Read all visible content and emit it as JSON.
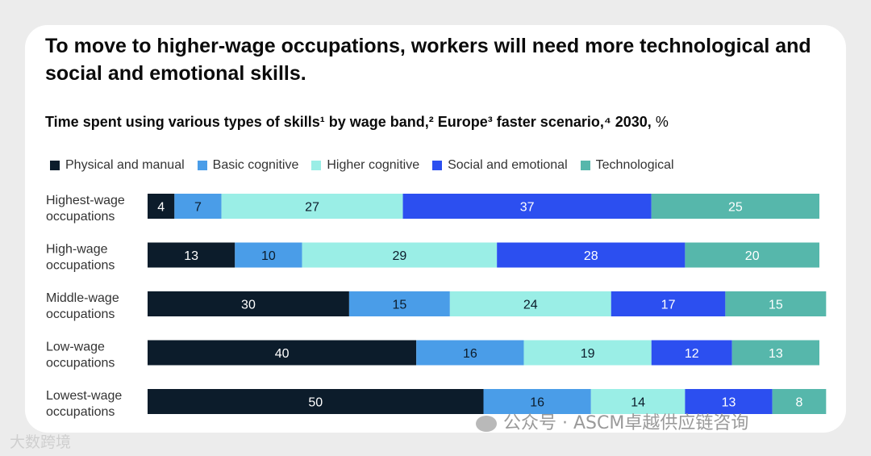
{
  "header": {
    "title": "To move to higher-wage occupations, workers will need more technological and social and emotional skills.",
    "subtitle": "Time spent using various types of skills¹ by wage band,² Europe³ faster scenario,⁴ 2030,",
    "unit": "%"
  },
  "chart_data": {
    "type": "bar",
    "orientation": "horizontal",
    "stacked": true,
    "title": "To move to higher-wage occupations, workers will need more technological and social and emotional skills.",
    "subtitle": "Time spent using various types of skills¹ by wage band,² Europe³ faster scenario,⁴ 2030, %",
    "categories": [
      "Highest-wage occupations",
      "High-wage occupations",
      "Middle-wage occupations",
      "Low-wage occupations",
      "Lowest-wage occupations"
    ],
    "series": [
      {
        "name": "Physical and manual",
        "color": "#0c1c2b",
        "label_color": "#ffffff",
        "values": [
          4,
          13,
          30,
          40,
          50
        ]
      },
      {
        "name": "Basic cognitive",
        "color": "#4a9de8",
        "label_color": "#0c1c2b",
        "values": [
          7,
          10,
          15,
          16,
          16
        ]
      },
      {
        "name": "Higher cognitive",
        "color": "#9aeee6",
        "label_color": "#0c1c2b",
        "values": [
          27,
          29,
          24,
          19,
          14
        ]
      },
      {
        "name": "Social and emotional",
        "color": "#2c4ff0",
        "label_color": "#ffffff",
        "values": [
          37,
          28,
          17,
          12,
          13
        ]
      },
      {
        "name": "Technological",
        "color": "#56b7ab",
        "label_color": "#ffffff",
        "values": [
          25,
          20,
          15,
          13,
          8
        ]
      }
    ],
    "xlim": [
      0,
      100
    ],
    "legend_position": "top-left",
    "grid": false
  },
  "watermarks": {
    "right": "公众号 · ASCM卓越供应链咨询",
    "left": "大数跨境"
  }
}
